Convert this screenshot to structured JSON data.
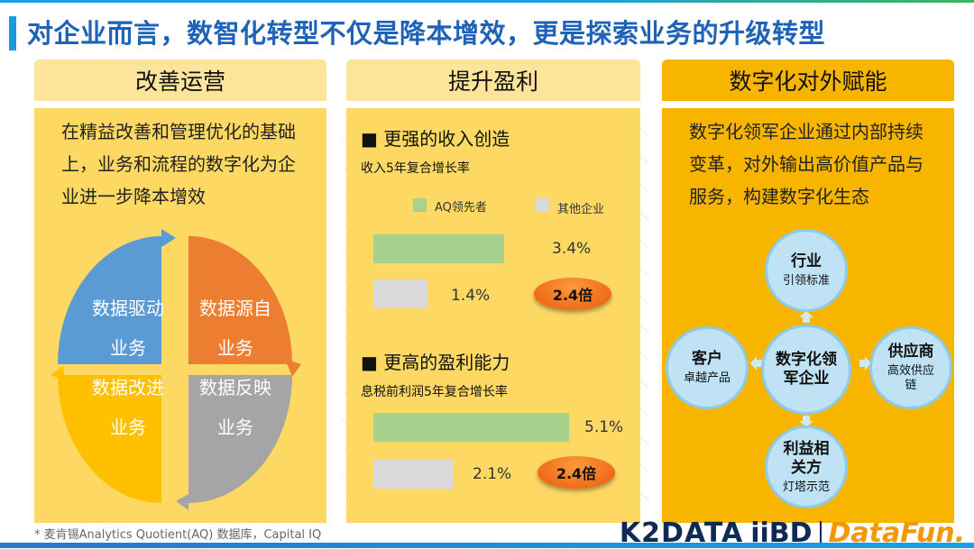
{
  "title": "对企业而言，数智化转型不仅是降本增效，更是探索业务的升级转型",
  "panel1": {
    "header": "改善运营",
    "description": "在精益改善和管理优化的基础上，业务和流程的数字化为企业进一步降本增效",
    "quadrants": {
      "top_left": {
        "line1": "数据驱动",
        "line2": "业务",
        "color": "#5b9bd5"
      },
      "top_right": {
        "line1": "数据源自",
        "line2": "业务",
        "color": "#ed7d31"
      },
      "bottom_left": {
        "line1": "数据改进",
        "line2": "业务",
        "color": "#ffc000"
      },
      "bottom_right": {
        "line1": "数据反映",
        "line2": "业务",
        "color": "#a5a5a5"
      }
    }
  },
  "panel2": {
    "header": "提升盈利",
    "legend": {
      "leader": "AQ领先者",
      "others": "其他企业",
      "leader_color": "#a9d18e",
      "others_color": "#d9d9d9"
    },
    "section1": {
      "title": "■ 更强的收入创造",
      "subtitle": "收入5年复合增长率",
      "leader_value": 3.4,
      "others_value": 1.4,
      "leader_label": "3.4%",
      "others_label": "1.4%",
      "multiple": "2.4倍"
    },
    "section2": {
      "title": "■ 更高的盈利能力",
      "subtitle": "息税前利润5年复合增长率",
      "leader_value": 5.1,
      "others_value": 2.1,
      "leader_label": "5.1%",
      "others_label": "2.1%",
      "multiple": "2.4倍"
    }
  },
  "panel3": {
    "header": "数字化对外赋能",
    "description": "数字化领军企业通过内部持续变革，对外输出高价值产品与服务，构建数字化生态",
    "center": "数字化领军企业",
    "top": {
      "main": "行业",
      "sub": "引领标准"
    },
    "left": {
      "main": "客户",
      "sub": "卓越产品"
    },
    "right": {
      "main": "供应商",
      "sub": "高效供应链"
    },
    "bottom": {
      "main": "利益相关方",
      "sub": "灯塔示范"
    }
  },
  "footnote": "* 麦肯锡Analytics Quotient(AQ) 数据库，Capital IQ",
  "logos": {
    "k2data": "K2DATA",
    "iibd": "iiBD",
    "datafun": "DataFun."
  }
}
